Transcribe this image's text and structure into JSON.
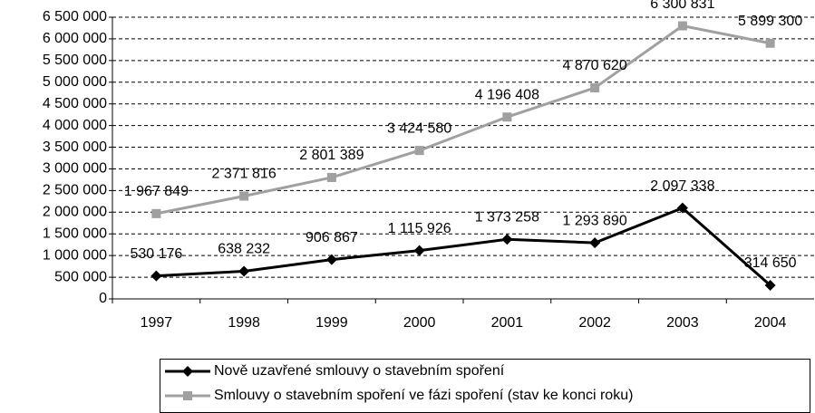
{
  "chart_data": {
    "type": "line",
    "categories": [
      "1997",
      "1998",
      "1999",
      "2000",
      "2001",
      "2002",
      "2003",
      "2004"
    ],
    "series": [
      {
        "name": "Nově uzavřené smlouvy o stavebním spoření",
        "color": "#000000",
        "marker": "diamond",
        "values": [
          530176,
          638232,
          906867,
          1115926,
          1373258,
          1293890,
          2097338,
          314650
        ],
        "value_labels": [
          "530 176",
          "638 232",
          "906 867",
          "1 115 926",
          "1 373 258",
          "1 293 890",
          "2 097 338",
          "314 650"
        ]
      },
      {
        "name": "Smlouvy o stavebním spoření ve fázi spoření (stav ke konci roku)",
        "color": "#a0a0a0",
        "marker": "square",
        "values": [
          1967849,
          2371816,
          2801389,
          3424580,
          4196408,
          4870620,
          6300831,
          5899300
        ],
        "value_labels": [
          "1 967 849",
          "2 371 816",
          "2 801 389",
          "3 424 580",
          "4 196 408",
          "4 870 620",
          "6 300 831",
          "5 899 300"
        ]
      }
    ],
    "ylim": [
      0,
      6500000
    ],
    "yticks": [
      0,
      {
        "value": 500000,
        "label": "500 000"
      },
      {
        "value": 1000000,
        "label": "1 000 000"
      },
      {
        "value": 1500000,
        "label": "1 500 000"
      },
      {
        "value": 2000000,
        "label": "2 000 000"
      },
      {
        "value": 2500000,
        "label": "2 500 000"
      },
      {
        "value": 3000000,
        "label": "3 000 000"
      },
      {
        "value": 3500000,
        "label": "3 500 000"
      },
      {
        "value": 4000000,
        "label": "4 000 000"
      },
      {
        "value": 4500000,
        "label": "4 500 000"
      },
      {
        "value": 5000000,
        "label": "5 000 000"
      },
      {
        "value": 5500000,
        "label": "5 500 000"
      },
      {
        "value": 6000000,
        "label": "6 000 000"
      },
      {
        "value": 6500000,
        "label": "6 500 000"
      }
    ],
    "grid": true,
    "legend": "bottom"
  }
}
